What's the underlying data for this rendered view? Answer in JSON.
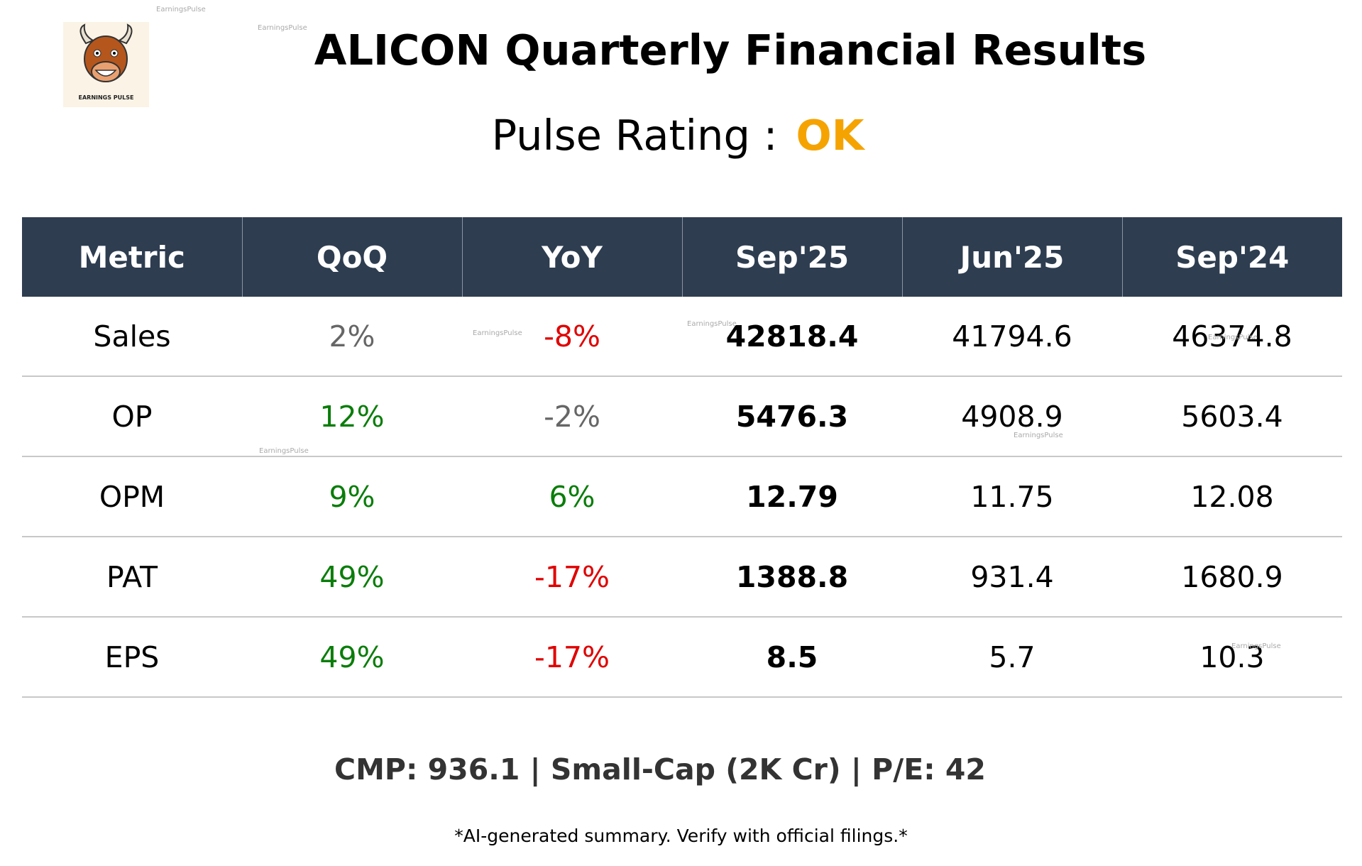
{
  "header": {
    "title": "ALICON Quarterly Financial Results",
    "rating_label": "Pulse Rating :",
    "rating": "OK",
    "logo_text": "EARNINGS PULSE",
    "watermark": "EarningsPulse"
  },
  "table": {
    "columns": [
      "Metric",
      "QoQ",
      "YoY",
      "Sep'25",
      "Jun'25",
      "Sep'24"
    ],
    "rows": [
      [
        "Sales",
        "2%",
        "-8%",
        "42818.4",
        "41794.6",
        "46374.8"
      ],
      [
        "OP",
        "12%",
        "-2%",
        "5476.3",
        "4908.9",
        "5603.4"
      ],
      [
        "OPM",
        "9%",
        "6%",
        "12.79",
        "11.75",
        "12.08"
      ],
      [
        "PAT",
        "49%",
        "-17%",
        "1388.8",
        "931.4",
        "1680.9"
      ],
      [
        "EPS",
        "49%",
        "-17%",
        "8.5",
        "5.7",
        "10.3"
      ]
    ]
  },
  "footer": {
    "summary": "CMP: 936.1 | Small-Cap (2K Cr) | P/E: 42",
    "disclaimer": "*AI-generated summary. Verify with official filings.*"
  }
}
